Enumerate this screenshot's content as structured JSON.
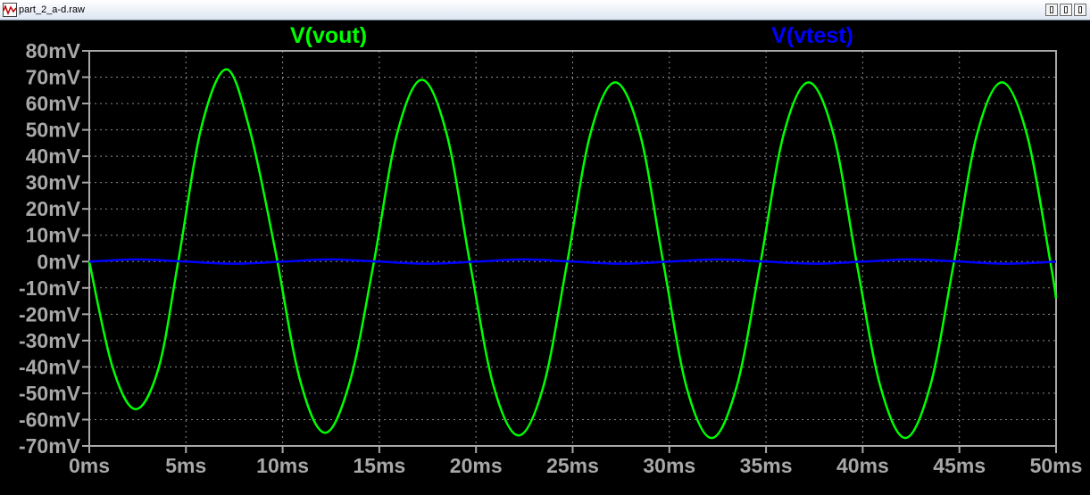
{
  "window": {
    "title": "part_2_a-d.raw",
    "icon": "waveform-icon",
    "controls": [
      "minimize-icon",
      "maximize-icon",
      "close-icon"
    ]
  },
  "colors": {
    "background": "#000000",
    "grid": "#8a8a8a",
    "axis_text": "#a8a8a8",
    "frame": "#a8a8a8"
  },
  "chart_data": {
    "type": "line",
    "title": "",
    "xlabel": "",
    "ylabel": "",
    "xlim": [
      0,
      50
    ],
    "ylim": [
      -70,
      80
    ],
    "grid": true,
    "x_ticks": [
      0,
      5,
      10,
      15,
      20,
      25,
      30,
      35,
      40,
      45,
      50
    ],
    "x_tick_labels": [
      "0ms",
      "5ms",
      "10ms",
      "15ms",
      "20ms",
      "25ms",
      "30ms",
      "35ms",
      "40ms",
      "45ms",
      "50ms"
    ],
    "y_ticks": [
      80,
      70,
      60,
      50,
      40,
      30,
      20,
      10,
      0,
      -10,
      -20,
      -30,
      -40,
      -50,
      -60,
      -70
    ],
    "y_tick_labels": [
      "80mV",
      "70mV",
      "60mV",
      "50mV",
      "40mV",
      "30mV",
      "20mV",
      "10mV",
      "0mV",
      "-10mV",
      "-20mV",
      "-30mV",
      "-40mV",
      "-50mV",
      "-60mV",
      "-70mV"
    ],
    "series": [
      {
        "name": "V(vout)",
        "color": "#00ff00",
        "x": [
          0,
          1.2,
          2.4,
          3.6,
          4.6,
          5.8,
          7.1,
          8.3,
          9.6,
          10.9,
          12.2,
          13.5,
          14.7,
          15.9,
          17.2,
          18.5,
          19.7,
          20.9,
          22.2,
          23.5,
          24.7,
          25.9,
          27.2,
          28.5,
          29.7,
          30.9,
          32.2,
          33.5,
          34.7,
          35.9,
          37.2,
          38.5,
          39.7,
          40.9,
          42.2,
          43.5,
          44.7,
          45.9,
          47.2,
          48.5,
          49.7,
          50.0
        ],
        "y": [
          0,
          -40,
          -56,
          -40,
          0,
          51,
          73,
          50,
          5,
          -45,
          -65,
          -45,
          -1,
          48,
          69,
          48,
          -1,
          -47,
          -66,
          -47,
          -1,
          48,
          68,
          48,
          -1,
          -48,
          -67,
          -47,
          -1,
          48,
          68,
          48,
          -1,
          -47,
          -67,
          -47,
          -1,
          48,
          68,
          48,
          0,
          -14
        ]
      },
      {
        "name": "V(vtest)",
        "color": "#0000ff",
        "x": [
          0,
          2.5,
          5,
          7.5,
          10,
          12.5,
          15,
          17.5,
          20,
          22.5,
          25,
          27.5,
          30,
          32.5,
          35,
          37.5,
          40,
          42.5,
          45,
          47.5,
          50
        ],
        "y": [
          0,
          0.8,
          0,
          -0.8,
          0,
          0.8,
          0,
          -0.8,
          0,
          0.8,
          0,
          -0.8,
          0,
          0.8,
          0,
          -0.8,
          0,
          0.8,
          0,
          -0.8,
          0
        ]
      }
    ],
    "legend_position": "top"
  }
}
